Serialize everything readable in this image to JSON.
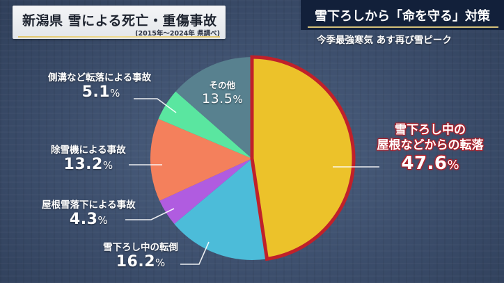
{
  "header": {
    "title": "新潟県 雪による死亡・重傷事故",
    "subtitle": "(2015年〜2024年 県調べ)"
  },
  "news": {
    "headline": "雪下ろしから「命を守る」対策",
    "subheadline": "今季最強寒気 あす再び雪ピーク"
  },
  "labels": {
    "roof_fall": {
      "name_line1": "雪下ろし中の",
      "name_line2": "屋根などからの転落",
      "value": "47.6",
      "unit": "%"
    },
    "fall_over": {
      "name": "雪下ろし中の転倒",
      "value": "16.2",
      "unit": "%"
    },
    "snow_drop": {
      "name": "屋根雪落下による事故",
      "value": "4.3",
      "unit": "%"
    },
    "snowblower": {
      "name": "除雪機による事故",
      "value": "13.2",
      "unit": "%"
    },
    "ditch": {
      "name": "側溝など転落による事故",
      "value": "5.1",
      "unit": "%"
    },
    "other": {
      "name": "その他",
      "value": "13.5",
      "unit": "%"
    }
  },
  "colors": {
    "roof_fall": "#ecc22a",
    "roof_fall_outline": "#c0212a",
    "fall_over": "#4cbcd9",
    "snow_drop": "#b05ce0",
    "snowblower": "#f4805c",
    "ditch": "#5ae6a0",
    "other": "#58818f"
  },
  "chart_data": {
    "type": "pie",
    "title": "新潟県 雪による死亡・重傷事故",
    "subtitle": "(2015年〜2024年 県調べ)",
    "unit": "%",
    "start_angle": "12 o'clock, clockwise",
    "categories": [
      "雪下ろし中の屋根などからの転落",
      "雪下ろし中の転倒",
      "屋根雪落下による事故",
      "除雪機による事故",
      "側溝など転落による事故",
      "その他"
    ],
    "values": [
      47.6,
      16.2,
      4.3,
      13.2,
      5.1,
      13.5
    ],
    "highlighted": "雪下ろし中の屋根などからの転落",
    "legend": "none (direct labels)"
  }
}
